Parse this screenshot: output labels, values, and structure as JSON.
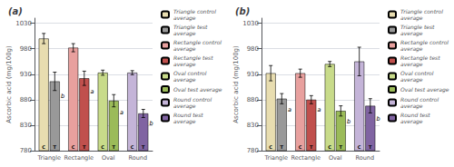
{
  "chart_data": [
    {
      "type": "bar",
      "title": "(a)",
      "ylabel": "Ascorbic acid (mg/100g)",
      "categories": [
        "Triangle",
        "Rectangle",
        "Oval",
        "Round"
      ],
      "series": [
        {
          "name": "Triangle control\naverage",
          "color": "#e8ddb0",
          "values": [
            1000,
            null,
            null,
            null
          ],
          "errors": [
            10,
            null,
            null,
            null
          ],
          "bar_label": "C"
        },
        {
          "name": "Triangle test\naverage",
          "color": "#999999",
          "values": [
            916,
            null,
            null,
            null
          ],
          "errors": [
            18,
            null,
            null,
            null
          ],
          "bar_label": "T"
        },
        {
          "name": "Rectangle control\naverage",
          "color": "#e8a09e",
          "values": [
            null,
            982,
            null,
            null
          ],
          "errors": [
            null,
            8,
            null,
            null
          ],
          "bar_label": "C"
        },
        {
          "name": "Rectangle test\naverage",
          "color": "#c0504d",
          "values": [
            null,
            922,
            null,
            null
          ],
          "errors": [
            null,
            14,
            null,
            null
          ],
          "bar_label": "T"
        },
        {
          "name": "Oval control\naverage",
          "color": "#c8db8a",
          "values": [
            null,
            null,
            933,
            null
          ],
          "errors": [
            null,
            null,
            5,
            null
          ],
          "bar_label": "C"
        },
        {
          "name": "Oval test average",
          "color": "#9bbb59",
          "values": [
            null,
            null,
            878,
            null
          ],
          "errors": [
            null,
            null,
            12,
            null
          ],
          "bar_label": "T"
        },
        {
          "name": "Round control\naverage",
          "color": "#c4b4d8",
          "values": [
            null,
            null,
            null,
            933
          ],
          "errors": [
            null,
            null,
            null,
            4
          ],
          "bar_label": "C"
        },
        {
          "name": "Round test\naverage",
          "color": "#8064a2",
          "values": [
            null,
            null,
            null,
            853
          ],
          "errors": [
            null,
            null,
            null,
            8
          ],
          "bar_label": "T"
        }
      ],
      "letter_labels": [
        "b",
        "a",
        "a",
        "b"
      ],
      "ylim": [
        780,
        1040
      ],
      "yticks": [
        780,
        830,
        880,
        930,
        980,
        1030
      ],
      "grid": true,
      "legend": "right"
    },
    {
      "type": "bar",
      "title": "(b)",
      "ylabel": "Ascorbic acid (mg/100g)",
      "categories": [
        "Triangle",
        "Rectangle",
        "Oval",
        "Round"
      ],
      "series": [
        {
          "name": "Triangle control\naverage",
          "color": "#e8ddb0",
          "values": [
            932,
            null,
            null,
            null
          ],
          "errors": [
            15,
            null,
            null,
            null
          ],
          "bar_label": "C"
        },
        {
          "name": "Triangle test\naverage",
          "color": "#999999",
          "values": [
            882,
            null,
            null,
            null
          ],
          "errors": [
            10,
            null,
            null,
            null
          ],
          "bar_label": "T"
        },
        {
          "name": "Rectangle control\naverage",
          "color": "#e8a09e",
          "values": [
            null,
            932,
            null,
            null
          ],
          "errors": [
            null,
            8,
            null,
            null
          ],
          "bar_label": "C"
        },
        {
          "name": "Rectangle test\naverage",
          "color": "#c0504d",
          "values": [
            null,
            880,
            null,
            null
          ],
          "errors": [
            null,
            8,
            null,
            null
          ],
          "bar_label": "T"
        },
        {
          "name": "Oval control\naverage",
          "color": "#c8db8a",
          "values": [
            null,
            null,
            950,
            null
          ],
          "errors": [
            null,
            null,
            5,
            null
          ],
          "bar_label": "C"
        },
        {
          "name": "Oval test average",
          "color": "#9bbb59",
          "values": [
            null,
            null,
            858,
            null
          ],
          "errors": [
            null,
            null,
            10,
            null
          ],
          "bar_label": "T"
        },
        {
          "name": "Round control\naverage",
          "color": "#c4b4d8",
          "values": [
            null,
            null,
            null,
            955
          ],
          "errors": [
            null,
            null,
            null,
            28
          ],
          "bar_label": "C"
        },
        {
          "name": "Round test\naverage",
          "color": "#8064a2",
          "values": [
            null,
            null,
            null,
            868
          ],
          "errors": [
            null,
            null,
            null,
            14
          ],
          "bar_label": "T"
        }
      ],
      "letter_labels": [
        "a",
        "a",
        "b",
        "b"
      ],
      "ylim": [
        780,
        1040
      ],
      "yticks": [
        780,
        830,
        880,
        930,
        980,
        1030
      ],
      "grid": true,
      "legend": "right"
    }
  ]
}
